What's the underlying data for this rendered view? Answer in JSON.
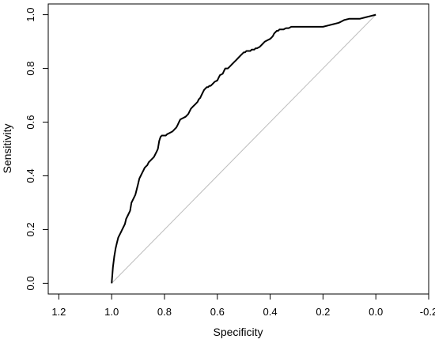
{
  "chart_data": {
    "type": "line",
    "title": "",
    "xlabel": "Specificity",
    "ylabel": "Sensitivity",
    "x_reversed": true,
    "xlim": [
      1.24,
      -0.2
    ],
    "ylim": [
      -0.04,
      1.04
    ],
    "xticks": [
      1.2,
      1.0,
      0.8,
      0.6,
      0.4,
      0.2,
      0.0,
      -0.2
    ],
    "xtick_labels": [
      "1.2",
      "1.0",
      "0.8",
      "0.6",
      "0.4",
      "0.2",
      "0.0",
      "-0.2"
    ],
    "yticks": [
      0.0,
      0.2,
      0.4,
      0.6,
      0.8,
      1.0
    ],
    "ytick_labels": [
      "0.0",
      "0.2",
      "0.4",
      "0.6",
      "0.8",
      "1.0"
    ],
    "grid": false,
    "colors": {
      "curve": "#000000",
      "reference": "#bdbdbd",
      "frame": "#000000"
    },
    "reference_line": {
      "x": [
        1.0,
        0.0
      ],
      "y": [
        0.0,
        1.0
      ]
    },
    "series": [
      {
        "values_x": [
          1.0,
          0.995,
          0.99,
          0.985,
          0.98,
          0.975,
          0.97,
          0.965,
          0.96,
          0.955,
          0.95,
          0.945,
          0.94,
          0.93,
          0.925,
          0.92,
          0.91,
          0.905,
          0.9,
          0.895,
          0.89,
          0.885,
          0.88,
          0.875,
          0.87,
          0.865,
          0.86,
          0.855,
          0.85,
          0.845,
          0.84,
          0.835,
          0.83,
          0.825,
          0.82,
          0.815,
          0.81,
          0.805,
          0.8,
          0.795,
          0.79,
          0.78,
          0.77,
          0.765,
          0.76,
          0.755,
          0.75,
          0.745,
          0.74,
          0.73,
          0.72,
          0.715,
          0.71,
          0.705,
          0.7,
          0.695,
          0.69,
          0.685,
          0.68,
          0.675,
          0.67,
          0.665,
          0.66,
          0.655,
          0.65,
          0.645,
          0.64,
          0.635,
          0.63,
          0.625,
          0.62,
          0.615,
          0.61,
          0.6,
          0.595,
          0.59,
          0.58,
          0.575,
          0.57,
          0.56,
          0.555,
          0.55,
          0.545,
          0.54,
          0.535,
          0.53,
          0.52,
          0.51,
          0.505,
          0.5,
          0.495,
          0.49,
          0.48,
          0.475,
          0.47,
          0.46,
          0.455,
          0.45,
          0.44,
          0.43,
          0.42,
          0.41,
          0.4,
          0.395,
          0.39,
          0.385,
          0.38,
          0.375,
          0.37,
          0.365,
          0.36,
          0.35,
          0.34,
          0.33,
          0.32,
          0.3,
          0.28,
          0.25,
          0.22,
          0.2,
          0.18,
          0.16,
          0.14,
          0.13,
          0.12,
          0.1,
          0.08,
          0.06,
          0.04,
          0.02,
          0.0
        ],
        "values_y": [
          0.0,
          0.06,
          0.1,
          0.13,
          0.15,
          0.17,
          0.18,
          0.19,
          0.2,
          0.21,
          0.22,
          0.24,
          0.25,
          0.27,
          0.3,
          0.31,
          0.33,
          0.35,
          0.37,
          0.39,
          0.4,
          0.41,
          0.42,
          0.43,
          0.435,
          0.44,
          0.45,
          0.455,
          0.46,
          0.465,
          0.47,
          0.48,
          0.49,
          0.5,
          0.53,
          0.545,
          0.55,
          0.55,
          0.55,
          0.55,
          0.555,
          0.56,
          0.565,
          0.57,
          0.575,
          0.58,
          0.59,
          0.6,
          0.61,
          0.615,
          0.62,
          0.625,
          0.63,
          0.64,
          0.65,
          0.655,
          0.66,
          0.665,
          0.67,
          0.675,
          0.685,
          0.69,
          0.7,
          0.71,
          0.72,
          0.725,
          0.73,
          0.73,
          0.735,
          0.735,
          0.74,
          0.745,
          0.75,
          0.755,
          0.765,
          0.775,
          0.78,
          0.79,
          0.8,
          0.8,
          0.805,
          0.81,
          0.815,
          0.82,
          0.825,
          0.83,
          0.84,
          0.85,
          0.855,
          0.86,
          0.86,
          0.865,
          0.865,
          0.865,
          0.87,
          0.87,
          0.875,
          0.875,
          0.88,
          0.89,
          0.9,
          0.905,
          0.91,
          0.915,
          0.92,
          0.93,
          0.935,
          0.94,
          0.94,
          0.945,
          0.945,
          0.945,
          0.95,
          0.95,
          0.955,
          0.955,
          0.955,
          0.955,
          0.955,
          0.955,
          0.96,
          0.965,
          0.97,
          0.975,
          0.98,
          0.985,
          0.985,
          0.985,
          0.99,
          0.995,
          1.0
        ]
      }
    ]
  }
}
